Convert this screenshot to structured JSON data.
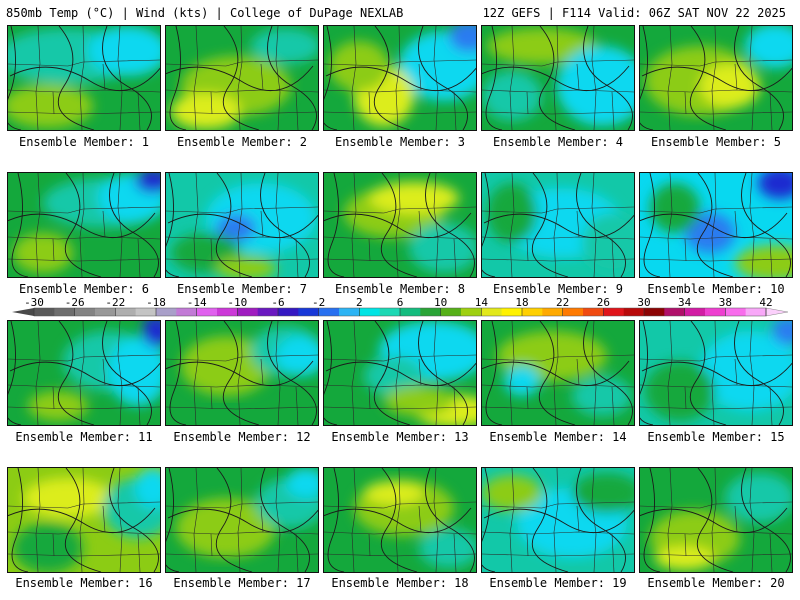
{
  "header": {
    "left": "850mb Temp (°C) | Wind (kts) | College of DuPage NEXLAB",
    "right": "12Z GEFS | F114 Valid: 06Z SAT NOV 22 2025"
  },
  "caption_prefix": "Ensemble Member:",
  "members": [
    {
      "number": 1,
      "label": "Ensemble Member: 1"
    },
    {
      "number": 2,
      "label": "Ensemble Member: 2"
    },
    {
      "number": 3,
      "label": "Ensemble Member: 3"
    },
    {
      "number": 4,
      "label": "Ensemble Member: 4"
    },
    {
      "number": 5,
      "label": "Ensemble Member: 5"
    },
    {
      "number": 6,
      "label": "Ensemble Member: 6"
    },
    {
      "number": 7,
      "label": "Ensemble Member: 7"
    },
    {
      "number": 8,
      "label": "Ensemble Member: 8"
    },
    {
      "number": 9,
      "label": "Ensemble Member: 9"
    },
    {
      "number": 10,
      "label": "Ensemble Member: 10"
    },
    {
      "number": 11,
      "label": "Ensemble Member: 11"
    },
    {
      "number": 12,
      "label": "Ensemble Member: 12"
    },
    {
      "number": 13,
      "label": "Ensemble Member: 13"
    },
    {
      "number": 14,
      "label": "Ensemble Member: 14"
    },
    {
      "number": 15,
      "label": "Ensemble Member: 15"
    },
    {
      "number": 16,
      "label": "Ensemble Member: 16"
    },
    {
      "number": 17,
      "label": "Ensemble Member: 17"
    },
    {
      "number": 18,
      "label": "Ensemble Member: 18"
    },
    {
      "number": 19,
      "label": "Ensemble Member: 19"
    },
    {
      "number": 20,
      "label": "Ensemble Member: 20"
    }
  ],
  "colorbar": {
    "unit": "°C",
    "ticks": [
      "-30",
      "-26",
      "-22",
      "-18",
      "-14",
      "-10",
      "-6",
      "-2",
      "2",
      "6",
      "10",
      "14",
      "18",
      "22",
      "26",
      "30",
      "34",
      "38",
      "42"
    ],
    "colors": [
      "#5a5a5a",
      "#6e6e6e",
      "#838383",
      "#989898",
      "#aeaeae",
      "#c4c4c4",
      "#a99fc9",
      "#c27ad6",
      "#e060ee",
      "#cc38d8",
      "#a01cc0",
      "#6a18c0",
      "#3518c2",
      "#1838d8",
      "#2870f0",
      "#2cb4f4",
      "#00e4e4",
      "#1cd8b4",
      "#14bc7e",
      "#2aa436",
      "#56b018",
      "#9ed010",
      "#e2e81a",
      "#fff200",
      "#ffd000",
      "#ffaa00",
      "#ff7a00",
      "#f04a10",
      "#e0141a",
      "#b80a0a",
      "#8c0404",
      "#b0106a",
      "#d21ca4",
      "#ee3ed0",
      "#f86cec",
      "#f8a8f8"
    ]
  },
  "palette": {
    "deep_blue": "#1a2cd0",
    "blue": "#2a7cf0",
    "cyan": "#08d8f0",
    "teal": "#12c8a8",
    "green": "#14a83c",
    "yellow_green": "#8ccc14",
    "yellow": "#dced1c",
    "bright_yellow": "#f4f20e",
    "contour_line": "#1b1b1b"
  }
}
